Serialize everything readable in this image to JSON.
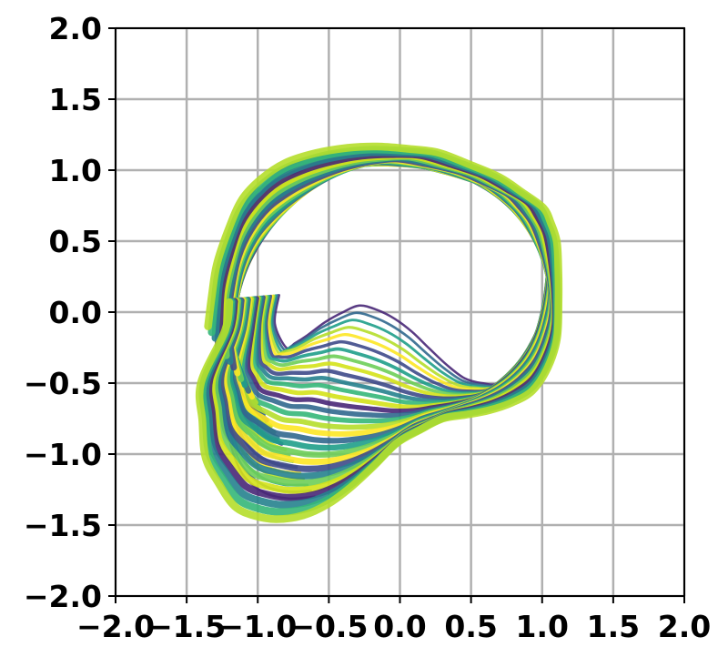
{
  "chart_data": {
    "type": "line",
    "title": "",
    "xlabel": "",
    "ylabel": "",
    "xlim": [
      -2.0,
      2.0
    ],
    "ylim": [
      -2.0,
      2.0
    ],
    "grid": true,
    "colormap": "viridis",
    "x_tick_labels": [
      "−2.0",
      "−1.5",
      "−1.0",
      "−0.5",
      "0.0",
      "0.5",
      "1.0",
      "1.5",
      "2.0"
    ],
    "x_ticks": [
      -2.0,
      -1.5,
      -1.0,
      -0.5,
      0.0,
      0.5,
      1.0,
      1.5,
      2.0
    ],
    "y_tick_labels": [
      "2.0",
      "1.5",
      "1.0",
      "0.5",
      "0.0",
      "−0.5",
      "−1.0",
      "−1.5",
      "−2.0"
    ],
    "y_ticks": [
      2.0,
      1.5,
      1.0,
      0.5,
      0.0,
      -0.5,
      -1.0,
      -1.5,
      -2.0
    ],
    "trajectory_count": 30,
    "outer_path": [
      [
        -1.4,
        -0.5
      ],
      [
        -1.38,
        -1.0
      ],
      [
        -1.2,
        -1.35
      ],
      [
        -0.95,
        -1.47
      ],
      [
        -0.6,
        -1.42
      ],
      [
        -0.3,
        -1.2
      ],
      [
        0.0,
        -0.9
      ],
      [
        0.3,
        -0.75
      ],
      [
        0.6,
        -0.7
      ],
      [
        0.9,
        -0.6
      ],
      [
        1.1,
        -0.3
      ],
      [
        1.12,
        0.2
      ],
      [
        1.1,
        0.55
      ],
      [
        1.0,
        0.75
      ],
      [
        0.7,
        0.95
      ],
      [
        0.3,
        1.12
      ],
      [
        -0.1,
        1.17
      ],
      [
        -0.5,
        1.15
      ],
      [
        -0.9,
        1.02
      ],
      [
        -1.15,
        0.75
      ],
      [
        -1.3,
        0.3
      ],
      [
        -1.35,
        -0.1
      ]
    ],
    "inner_path": [
      [
        -0.8,
        -0.25
      ],
      [
        -0.7,
        -0.2
      ],
      [
        -0.5,
        -0.05
      ],
      [
        -0.3,
        0.05
      ],
      [
        -0.1,
        0.0
      ],
      [
        0.1,
        -0.15
      ],
      [
        0.3,
        -0.35
      ],
      [
        0.5,
        -0.5
      ],
      [
        0.7,
        -0.5
      ],
      [
        0.9,
        -0.3
      ],
      [
        1.05,
        0.1
      ],
      [
        1.05,
        0.6
      ],
      [
        0.95,
        0.78
      ],
      [
        0.6,
        0.98
      ],
      [
        0.2,
        1.12
      ],
      [
        -0.1,
        1.15
      ],
      [
        -0.5,
        1.12
      ],
      [
        -0.9,
        1.0
      ],
      [
        -1.12,
        0.72
      ],
      [
        -1.25,
        0.3
      ],
      [
        -1.3,
        -0.1
      ],
      [
        -1.28,
        -0.6
      ],
      [
        -1.15,
        -1.1
      ],
      [
        -0.9,
        -1.32
      ],
      [
        -0.6,
        -1.3
      ]
    ]
  }
}
